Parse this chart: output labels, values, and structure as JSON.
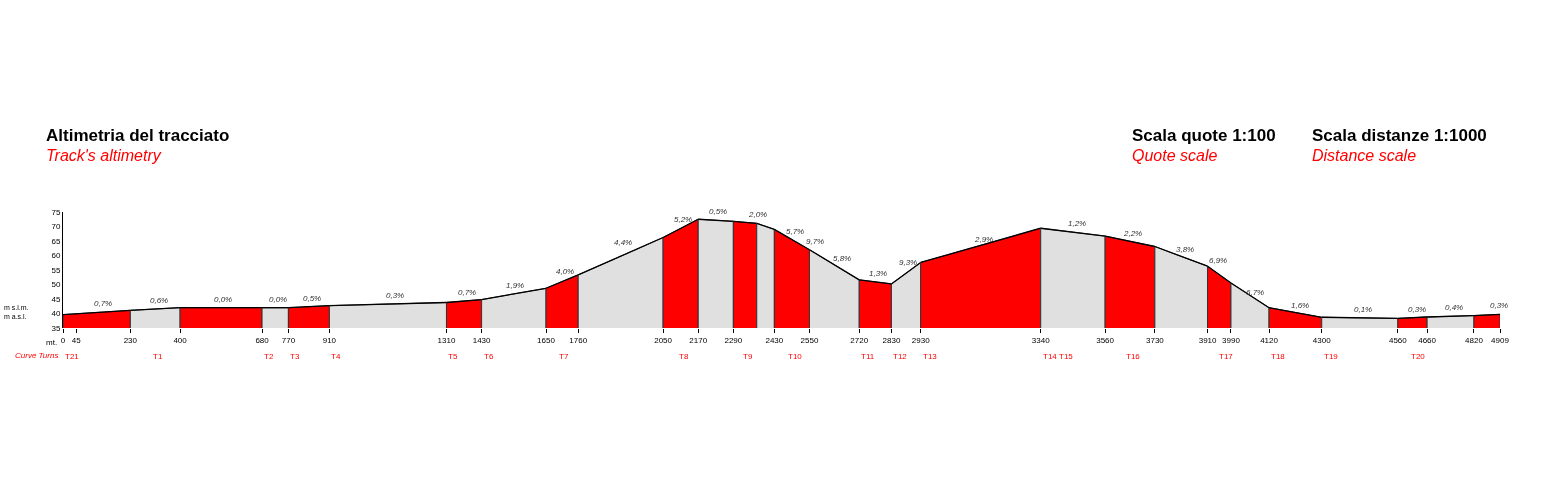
{
  "chart_data": {
    "type": "area",
    "title": "Altimetria del tracciato",
    "subtitle": "Track's altimetry",
    "xlabel": "mt.",
    "ylabel": "m s.l.m.\nm a.s.l.",
    "series": [
      {
        "color": "#ff0000",
        "x": [
          0,
          230
        ],
        "values": [
          39.6,
          41.1
        ]
      },
      {
        "color": "#e0e0e0",
        "x": [
          230,
          400
        ],
        "values": [
          41.1,
          42.0
        ]
      },
      {
        "color": "#ff0000",
        "x": [
          400,
          680
        ],
        "values": [
          42.0,
          42.0
        ]
      },
      {
        "color": "#e0e0e0",
        "x": [
          680,
          770
        ],
        "values": [
          42.0,
          42.0
        ]
      },
      {
        "color": "#ff0000",
        "x": [
          770,
          910
        ],
        "values": [
          42.0,
          42.7
        ]
      },
      {
        "color": "#e0e0e0",
        "x": [
          910,
          1310
        ],
        "values": [
          42.7,
          43.8
        ]
      },
      {
        "color": "#ff0000",
        "x": [
          1310,
          1430
        ],
        "values": [
          43.8,
          44.8
        ]
      },
      {
        "color": "#e0e0e0",
        "x": [
          1430,
          1650
        ],
        "values": [
          44.8,
          48.7
        ]
      },
      {
        "color": "#ff0000",
        "x": [
          1650,
          1760
        ],
        "values": [
          48.7,
          53.3
        ]
      },
      {
        "color": "#e0e0e0",
        "x": [
          1760,
          2050
        ],
        "values": [
          53.3,
          66.2
        ]
      },
      {
        "color": "#ff0000",
        "x": [
          2050,
          2170
        ],
        "values": [
          66.2,
          72.5
        ]
      },
      {
        "color": "#e0e0e0",
        "x": [
          2170,
          2290
        ],
        "values": [
          72.5,
          71.8
        ]
      },
      {
        "color": "#ff0000",
        "x": [
          2290,
          2370
        ],
        "values": [
          71.8,
          71.1
        ]
      },
      {
        "color": "#e0e0e0",
        "x": [
          2370,
          2430
        ],
        "values": [
          71.1,
          69.0
        ]
      },
      {
        "color": "#ff0000",
        "x": [
          2430,
          2550
        ],
        "values": [
          69.0,
          62.0
        ]
      },
      {
        "color": "#e0e0e0",
        "x": [
          2550,
          2720
        ],
        "values": [
          62.0,
          51.6
        ]
      },
      {
        "color": "#ff0000",
        "x": [
          2720,
          2830
        ],
        "values": [
          51.6,
          50.2
        ]
      },
      {
        "color": "#e0e0e0",
        "x": [
          2830,
          2930
        ],
        "values": [
          50.2,
          57.6
        ]
      },
      {
        "color": "#ff0000",
        "x": [
          2930,
          3340
        ],
        "values": [
          57.6,
          69.4
        ]
      },
      {
        "color": "#e0e0e0",
        "x": [
          3340,
          3560
        ],
        "values": [
          69.4,
          66.7
        ]
      },
      {
        "color": "#ff0000",
        "x": [
          3560,
          3730
        ],
        "values": [
          66.7,
          63.1
        ]
      },
      {
        "color": "#e0e0e0",
        "x": [
          3730,
          3910
        ],
        "values": [
          63.1,
          56.3
        ]
      },
      {
        "color": "#ff0000",
        "x": [
          3910,
          3990
        ],
        "values": [
          56.3,
          50.5
        ]
      },
      {
        "color": "#e0e0e0",
        "x": [
          3990,
          4120
        ],
        "values": [
          50.5,
          42.0
        ]
      },
      {
        "color": "#ff0000",
        "x": [
          4120,
          4300
        ],
        "values": [
          42.0,
          38.7
        ]
      },
      {
        "color": "#e0e0e0",
        "x": [
          4300,
          4560
        ],
        "values": [
          38.7,
          38.3
        ]
      },
      {
        "color": "#ff0000",
        "x": [
          4560,
          4660
        ],
        "values": [
          38.3,
          38.8
        ]
      },
      {
        "color": "#e0e0e0",
        "x": [
          4660,
          4820
        ],
        "values": [
          38.8,
          39.3
        ]
      },
      {
        "color": "#ff0000",
        "x": [
          4820,
          4909
        ],
        "values": [
          39.3,
          39.7
        ]
      }
    ],
    "line_style": "solid",
    "xlim": [
      0,
      4909
    ],
    "xticks": [
      0,
      45,
      230,
      400,
      680,
      770,
      910,
      1310,
      1430,
      1650,
      1760,
      2050,
      2170,
      2290,
      2430,
      2550,
      2720,
      2830,
      2930,
      3340,
      3560,
      3730,
      3910,
      3990,
      4120,
      4300,
      4560,
      4660,
      4820,
      4909
    ],
    "ylim": [
      35,
      75
    ],
    "yticks": [
      35,
      40,
      45,
      50,
      55,
      60,
      65,
      70,
      75
    ],
    "annotations": [
      "Scala quote 1:100",
      "Quote scale",
      "Scala distanze 1:1000",
      "Distance scale",
      "Curve Turns",
      {
        "text": "0,7%",
        "x": 137,
        "y": 40.5
      },
      {
        "text": "0,6%",
        "x": 328,
        "y": 41.6
      },
      {
        "text": "0,0%",
        "x": 547,
        "y": 42.0
      },
      {
        "text": "0,0%",
        "x": 734,
        "y": 42.0
      },
      {
        "text": "0,5%",
        "x": 851,
        "y": 42.4
      },
      {
        "text": "0,3%",
        "x": 1134,
        "y": 43.3
      },
      {
        "text": "0,7%",
        "x": 1380,
        "y": 44.4
      },
      {
        "text": "1,9%",
        "x": 1544,
        "y": 46.8
      },
      {
        "text": "4,0%",
        "x": 1715,
        "y": 51.4
      },
      {
        "text": "4,4%",
        "x": 1913,
        "y": 61.5
      },
      {
        "text": "5,2%",
        "x": 2118,
        "y": 69.5
      },
      {
        "text": "0,5%",
        "x": 2238,
        "y": 72.1
      },
      {
        "text": "2,0%",
        "x": 2371,
        "y": 71.1
      },
      {
        "text": "5,7%",
        "x": 2501,
        "y": 65.5
      },
      {
        "text": "9,7%",
        "x": 2569,
        "y": 61.8
      },
      {
        "text": "5,8%",
        "x": 2661,
        "y": 56.0
      },
      {
        "text": "1,3%",
        "x": 2784,
        "y": 50.9
      },
      {
        "text": "9,3%",
        "x": 2887,
        "y": 54.5
      },
      {
        "text": "2,9%",
        "x": 3143,
        "y": 62.7
      },
      {
        "text": "1,2%",
        "x": 3464,
        "y": 68.0
      },
      {
        "text": "2,2%",
        "x": 3655,
        "y": 64.7
      },
      {
        "text": "3,8%",
        "x": 3833,
        "y": 59.3
      },
      {
        "text": "6,9%",
        "x": 3946,
        "y": 55.4
      },
      {
        "text": "6,7%",
        "x": 4072,
        "y": 44.2
      },
      {
        "text": "1,6%",
        "x": 4226,
        "y": 40.0
      },
      {
        "text": "0,1%",
        "x": 4441,
        "y": 38.5
      },
      {
        "text": "0,3%",
        "x": 4626,
        "y": 38.6
      },
      {
        "text": "0,4%",
        "x": 4752,
        "y": 39.0
      },
      {
        "text": "0,3%",
        "x": 4906,
        "y": 39.7
      },
      {
        "text": "T21",
        "x": 0,
        "y": 35
      },
      {
        "text": "T1",
        "x": 300,
        "y": 35
      },
      {
        "text": "T2",
        "x": 680,
        "y": 35
      },
      {
        "text": "T3",
        "x": 770,
        "y": 35
      },
      {
        "text": "T4",
        "x": 910,
        "y": 35
      },
      {
        "text": "T5",
        "x": 1310,
        "y": 35
      },
      {
        "text": "T6",
        "x": 1430,
        "y": 35
      },
      {
        "text": "T7",
        "x": 1687,
        "y": 35
      },
      {
        "text": "T8",
        "x": 2096,
        "y": 35
      },
      {
        "text": "T9",
        "x": 2315,
        "y": 35
      },
      {
        "text": "T10",
        "x": 2469,
        "y": 35
      },
      {
        "text": "T11",
        "x": 2720,
        "y": 35
      },
      {
        "text": "T12",
        "x": 2830,
        "y": 35
      },
      {
        "text": "T13",
        "x": 2930,
        "y": 35
      },
      {
        "text": "T14",
        "x": 3340,
        "y": 35
      },
      {
        "text": "T15",
        "x": 3396,
        "y": 35
      },
      {
        "text": "T16",
        "x": 3625,
        "y": 35
      },
      {
        "text": "T17",
        "x": 3941,
        "y": 35
      },
      {
        "text": "T18",
        "x": 4120,
        "y": 35
      },
      {
        "text": "T19",
        "x": 4300,
        "y": 35
      },
      {
        "text": "T20",
        "x": 4599,
        "y": 35
      }
    ]
  }
}
